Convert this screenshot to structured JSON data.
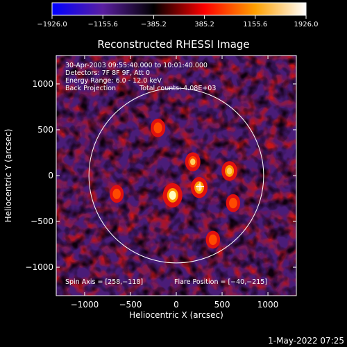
{
  "chart_data": {
    "type": "heatmap",
    "title": "Reconstructed RHESSI Image",
    "xlabel": "Heliocentric X (arcsec)",
    "ylabel": "Heliocentric Y (arcsec)",
    "xlim": [
      -1310,
      1310
    ],
    "ylim": [
      -1310,
      1310
    ],
    "x_ticks": [
      -1000,
      -500,
      0,
      500,
      1000
    ],
    "y_ticks": [
      -1000,
      -500,
      0,
      500,
      1000
    ],
    "x_tick_labels": [
      "−1000",
      "−500",
      "0",
      "500",
      "1000"
    ],
    "y_tick_labels": [
      "−1000",
      "−500",
      "0",
      "500",
      "1000"
    ],
    "colorbar": {
      "min": -1926.0,
      "max": 1926.0,
      "tick_values": [
        -1926.0,
        -1155.6,
        -385.2,
        385.2,
        1155.6,
        1926.0
      ],
      "tick_labels": [
        "−1926.0",
        "−1155.6",
        "−385.2",
        "385.2",
        "1155.6",
        "1926.0"
      ],
      "stops": [
        "#0000ff",
        "#5a1fa0",
        "#000000",
        "#ff0000",
        "#ffa000",
        "#ffffff"
      ]
    },
    "annotations": {
      "time": "30-Apr-2003 09:55:40.000 to 10:01:40.000",
      "detectors": "Detectors: 7F 8F 9F, Att 0",
      "energy": "Energy Range: 6.0 - 12.0 keV",
      "method": "Back Projection",
      "counts": "Total counts: 4.08E+03",
      "spin_axis": "Spin Axis = [258,−118]",
      "flare_position": "Flare Position = [−40,−215]"
    },
    "solar_disk_radius": 953,
    "spin_axis": [
      258,
      -118
    ],
    "flare_position": [
      -40,
      -215
    ],
    "sources": [
      {
        "x": -40,
        "y": -215,
        "value": 1926
      },
      {
        "x": 250,
        "y": -130,
        "value": 1400
      },
      {
        "x": 180,
        "y": 150,
        "value": 1100
      },
      {
        "x": 580,
        "y": 50,
        "value": 1200
      },
      {
        "x": -200,
        "y": 520,
        "value": 1000
      },
      {
        "x": 620,
        "y": -300,
        "value": 900
      },
      {
        "x": -650,
        "y": -200,
        "value": 850
      },
      {
        "x": 400,
        "y": -700,
        "value": 900
      }
    ]
  },
  "footer": {
    "timestamp": "1-May-2022 07:25"
  }
}
